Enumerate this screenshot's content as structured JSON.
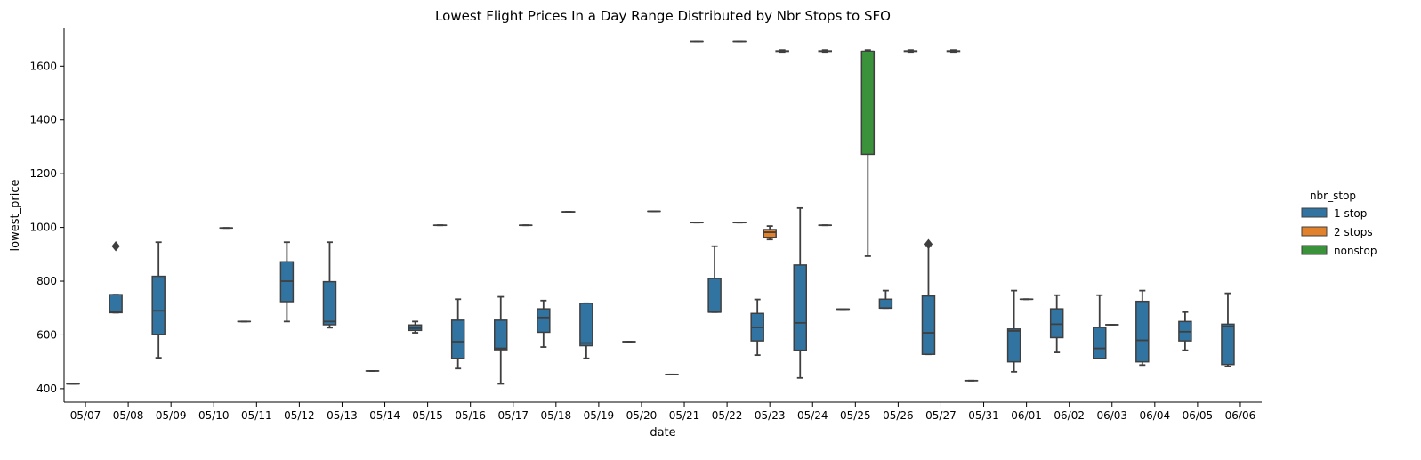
{
  "chart_data": {
    "type": "box",
    "title": "Lowest Flight Prices In a Day Range Distributed by Nbr Stops to SFO",
    "xlabel": "date",
    "ylabel": "lowest_price",
    "ylim": [
      350,
      1740
    ],
    "yticks": [
      400,
      600,
      800,
      1000,
      1200,
      1400,
      1600
    ],
    "categories": [
      "05/07",
      "05/08",
      "05/09",
      "05/10",
      "05/11",
      "05/12",
      "05/13",
      "05/14",
      "05/15",
      "05/16",
      "05/17",
      "05/18",
      "05/19",
      "05/20",
      "05/21",
      "05/22",
      "05/23",
      "05/24",
      "05/25",
      "05/26",
      "05/27",
      "05/31",
      "06/01",
      "06/02",
      "06/03",
      "06/04",
      "06/05",
      "06/06"
    ],
    "legend": {
      "title": "nbr_stop",
      "position": "right",
      "entries": [
        {
          "name": "1 stop",
          "color": "#3274a1"
        },
        {
          "name": "2 stops",
          "color": "#e1812c"
        },
        {
          "name": "nonstop",
          "color": "#3a923a"
        }
      ]
    },
    "series": [
      {
        "name": "1 stop",
        "color": "#3274a1",
        "boxes": [
          {
            "category": "05/07",
            "min": 418,
            "q1": 418,
            "median": 418,
            "q3": 418,
            "max": 418,
            "outliers": []
          },
          {
            "category": "05/08",
            "min": 683,
            "q1": 683,
            "median": 685,
            "q3": 750,
            "max": 750,
            "outliers": [
              930
            ]
          },
          {
            "category": "05/09",
            "min": 515,
            "q1": 602,
            "median": 690,
            "q3": 818,
            "max": 945,
            "outliers": []
          },
          {
            "category": "05/11",
            "min": 650,
            "q1": 650,
            "median": 650,
            "q3": 650,
            "max": 650,
            "outliers": []
          },
          {
            "category": "05/12",
            "min": 650,
            "q1": 724,
            "median": 800,
            "q3": 872,
            "max": 945,
            "outliers": []
          },
          {
            "category": "05/13",
            "min": 627,
            "q1": 638,
            "median": 650,
            "q3": 798,
            "max": 945,
            "outliers": []
          },
          {
            "category": "05/14",
            "min": 466,
            "q1": 466,
            "median": 466,
            "q3": 466,
            "max": 466,
            "outliers": []
          },
          {
            "category": "05/15",
            "min": 608,
            "q1": 617,
            "median": 625,
            "q3": 637,
            "max": 650,
            "outliers": []
          },
          {
            "category": "05/16",
            "min": 475,
            "q1": 513,
            "median": 575,
            "q3": 655,
            "max": 733,
            "outliers": []
          },
          {
            "category": "05/17",
            "min": 418,
            "q1": 545,
            "median": 550,
            "q3": 655,
            "max": 742,
            "outliers": []
          },
          {
            "category": "05/18",
            "min": 555,
            "q1": 610,
            "median": 665,
            "q3": 697,
            "max": 728,
            "outliers": []
          },
          {
            "category": "05/19",
            "min": 513,
            "q1": 560,
            "median": 570,
            "q3": 718,
            "max": 718,
            "outliers": []
          },
          {
            "category": "05/20",
            "min": 575,
            "q1": 575,
            "median": 575,
            "q3": 575,
            "max": 575,
            "outliers": []
          },
          {
            "category": "05/21",
            "min": 453,
            "q1": 453,
            "median": 453,
            "q3": 453,
            "max": 453,
            "outliers": []
          },
          {
            "category": "05/22",
            "min": 685,
            "q1": 685,
            "median": 685,
            "q3": 810,
            "max": 930,
            "outliers": []
          },
          {
            "category": "05/23",
            "min": 525,
            "q1": 578,
            "median": 628,
            "q3": 680,
            "max": 732,
            "outliers": []
          },
          {
            "category": "05/24",
            "min": 440,
            "q1": 543,
            "median": 645,
            "q3": 860,
            "max": 1072,
            "outliers": []
          },
          {
            "category": "05/25",
            "min": 696,
            "q1": 696,
            "median": 696,
            "q3": 696,
            "max": 696,
            "outliers": []
          },
          {
            "category": "05/26",
            "min": 700,
            "q1": 700,
            "median": 700,
            "q3": 733,
            "max": 765,
            "outliers": []
          },
          {
            "category": "05/27",
            "min": 528,
            "q1": 528,
            "median": 608,
            "q3": 745,
            "max": 930,
            "outliers": [
              938
            ]
          },
          {
            "category": "05/31",
            "min": 430,
            "q1": 430,
            "median": 430,
            "q3": 430,
            "max": 430,
            "outliers": []
          },
          {
            "category": "06/01",
            "min": 463,
            "q1": 500,
            "median": 615,
            "q3": 622,
            "max": 765,
            "outliers": []
          },
          {
            "category": "06/02",
            "min": 535,
            "q1": 590,
            "median": 640,
            "q3": 697,
            "max": 748,
            "outliers": []
          },
          {
            "category": "06/03",
            "min": 513,
            "q1": 513,
            "median": 550,
            "q3": 628,
            "max": 748,
            "outliers": []
          },
          {
            "category": "06/04",
            "min": 488,
            "q1": 500,
            "median": 580,
            "q3": 725,
            "max": 765,
            "outliers": []
          },
          {
            "category": "06/05",
            "min": 543,
            "q1": 578,
            "median": 612,
            "q3": 650,
            "max": 685,
            "outliers": []
          },
          {
            "category": "06/06",
            "min": 483,
            "q1": 490,
            "median": 632,
            "q3": 640,
            "max": 755,
            "outliers": []
          }
        ]
      },
      {
        "name": "2 stops",
        "color": "#e1812c",
        "boxes": [
          {
            "category": "05/23",
            "min": 955,
            "q1": 963,
            "median": 982,
            "q3": 992,
            "max": 1005,
            "outliers": []
          },
          {
            "category": "06/01",
            "min": 733,
            "q1": 733,
            "median": 733,
            "q3": 733,
            "max": 733,
            "outliers": []
          },
          {
            "category": "06/03",
            "min": 638,
            "q1": 638,
            "median": 638,
            "q3": 638,
            "max": 638,
            "outliers": []
          }
        ]
      },
      {
        "name": "nonstop",
        "color": "#3a923a",
        "boxes": [
          {
            "category": "05/10",
            "min": 998,
            "q1": 998,
            "median": 998,
            "q3": 998,
            "max": 998,
            "outliers": []
          },
          {
            "category": "05/15",
            "min": 1008,
            "q1": 1008,
            "median": 1008,
            "q3": 1008,
            "max": 1008,
            "outliers": []
          },
          {
            "category": "05/17",
            "min": 1008,
            "q1": 1008,
            "median": 1008,
            "q3": 1008,
            "max": 1008,
            "outliers": []
          },
          {
            "category": "05/18",
            "min": 1058,
            "q1": 1058,
            "median": 1058,
            "q3": 1058,
            "max": 1058,
            "outliers": []
          },
          {
            "category": "05/20",
            "min": 1060,
            "q1": 1060,
            "median": 1060,
            "q3": 1060,
            "max": 1060,
            "outliers": []
          },
          {
            "category": "05/21",
            "min": 1018,
            "q1": 1018,
            "median": 1018,
            "q3": 1018,
            "max": 1018,
            "outliers": []
          },
          {
            "category": "05/21",
            "min": 1692,
            "q1": 1692,
            "median": 1692,
            "q3": 1692,
            "max": 1692,
            "outliers": []
          },
          {
            "category": "05/22",
            "min": 1018,
            "q1": 1018,
            "median": 1018,
            "q3": 1018,
            "max": 1018,
            "outliers": []
          },
          {
            "category": "05/22",
            "min": 1692,
            "q1": 1692,
            "median": 1692,
            "q3": 1692,
            "max": 1692,
            "outliers": []
          },
          {
            "category": "05/23",
            "min": 1650,
            "q1": 1652,
            "median": 1655,
            "q3": 1657,
            "max": 1660,
            "outliers": []
          },
          {
            "category": "05/24",
            "min": 1008,
            "q1": 1008,
            "median": 1008,
            "q3": 1008,
            "max": 1008,
            "outliers": []
          },
          {
            "category": "05/24",
            "min": 1650,
            "q1": 1652,
            "median": 1655,
            "q3": 1657,
            "max": 1660,
            "outliers": []
          },
          {
            "category": "05/25",
            "min": 893,
            "q1": 1272,
            "median": 1655,
            "q3": 1655,
            "max": 1660,
            "outliers": []
          },
          {
            "category": "05/26",
            "min": 1650,
            "q1": 1652,
            "median": 1655,
            "q3": 1657,
            "max": 1660,
            "outliers": []
          },
          {
            "category": "05/27",
            "min": 1650,
            "q1": 1652,
            "median": 1655,
            "q3": 1657,
            "max": 1660,
            "outliers": []
          }
        ]
      }
    ]
  }
}
